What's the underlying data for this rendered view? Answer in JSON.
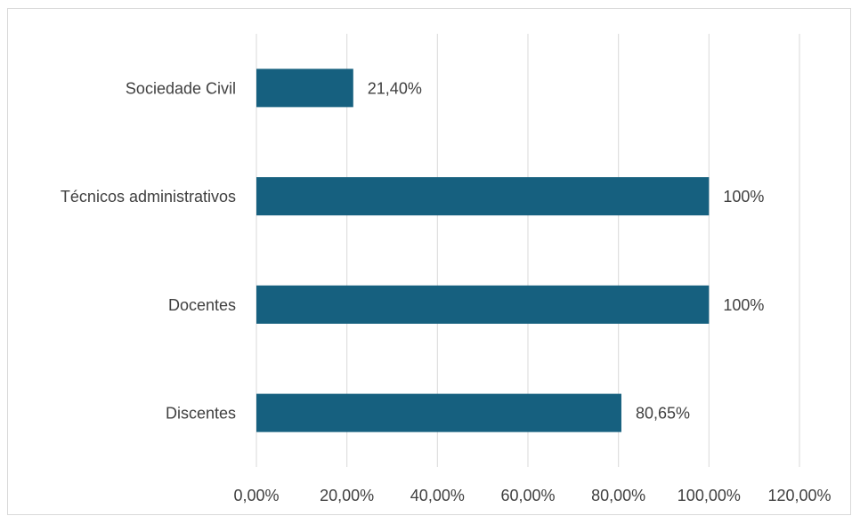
{
  "chart_data": {
    "type": "bar",
    "orientation": "horizontal",
    "categories": [
      "Sociedade Civil",
      "Técnicos administrativos",
      "Docentes",
      "Discentes"
    ],
    "values": [
      21.4,
      100,
      100,
      80.65
    ],
    "value_labels": [
      "21,40%",
      "100%",
      "100%",
      "80,65%"
    ],
    "xlim": [
      0,
      120
    ],
    "x_ticks": [
      0,
      20,
      40,
      60,
      80,
      100,
      120
    ],
    "x_tick_labels": [
      "0,00%",
      "20,00%",
      "40,00%",
      "60,00%",
      "80,00%",
      "100,00%",
      "120,00%"
    ],
    "grid": "vertical",
    "legend": "none",
    "colors": {
      "bar": "#16607f",
      "grid": "#d9d9d9",
      "text": "#404040",
      "border": "#d9d9d9"
    }
  }
}
